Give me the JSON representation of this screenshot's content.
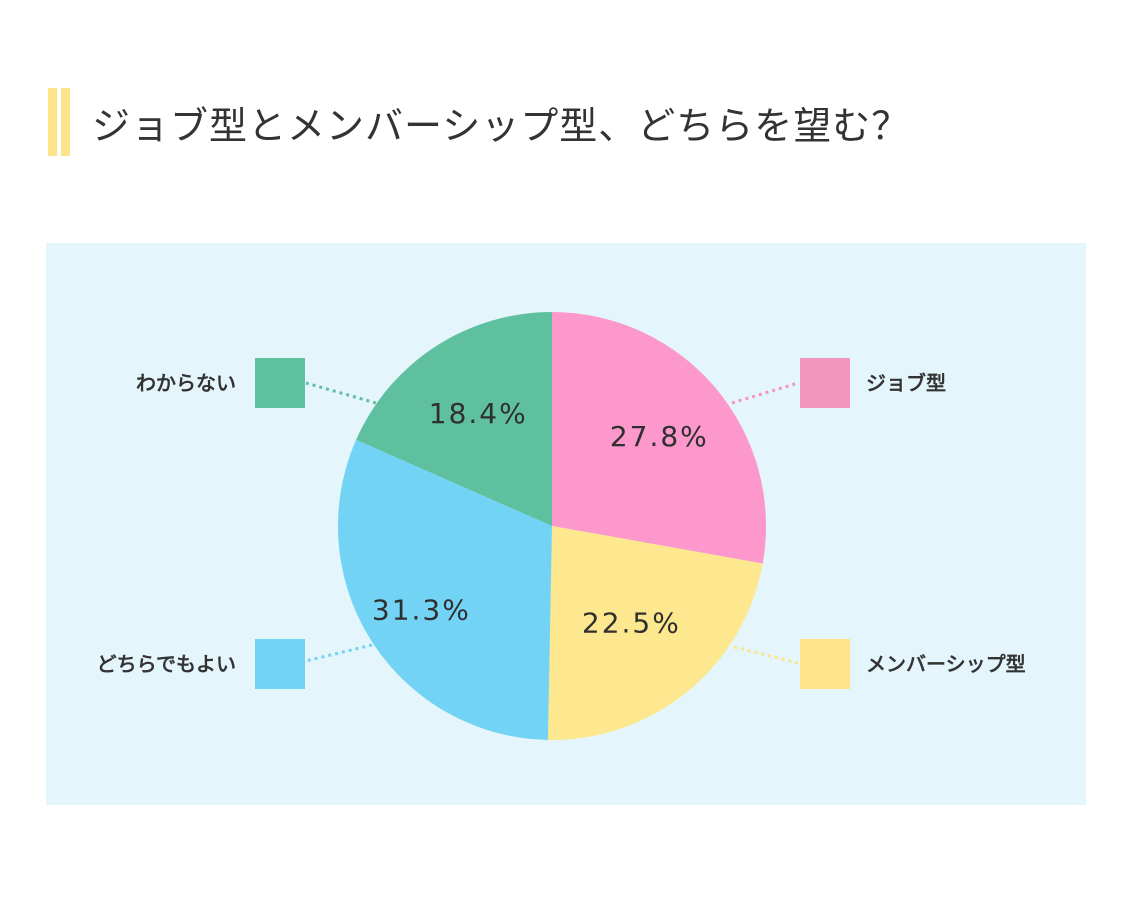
{
  "title": "ジョブ型とメンバーシップ型、どちらを望む？",
  "colors": {
    "title_bar": "#fde38a",
    "panel_bg": "#e4f6fc",
    "text": "#333333",
    "percent_text": "#2f2f2f"
  },
  "chart_data": {
    "type": "pie",
    "start": "12 o'clock",
    "direction": "clockwise",
    "slices": [
      {
        "label": "ジョブ型",
        "value": 27.8,
        "display": "27.8%",
        "color": "#fc98cb",
        "legend_color": "#f596bd"
      },
      {
        "label": "メンバーシップ型",
        "value": 22.5,
        "display": "22.5%",
        "color": "#fde78f",
        "legend_color": "#fde48c"
      },
      {
        "label": "どちらでもよい",
        "value": 31.3,
        "display": "31.3%",
        "color": "#72d3f4",
        "legend_color": "#72d3f4"
      },
      {
        "label": "わからない",
        "value": 18.4,
        "display": "18.4%",
        "color": "#5fc0a0",
        "legend_color": "#5fc0a0"
      }
    ]
  }
}
